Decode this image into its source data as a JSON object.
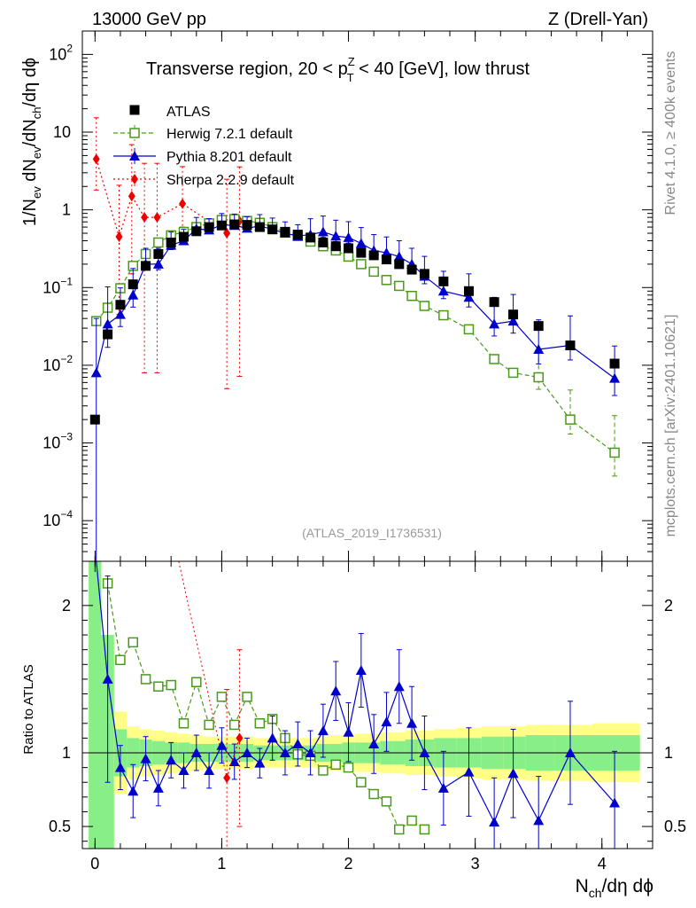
{
  "header": {
    "left": "13000 GeV pp",
    "right": "Z (Drell-Yan)"
  },
  "side_labels": {
    "top": "Rivet 4.1.0, ≥ 400k events",
    "bottom": "mcplots.cern.ch [arXiv:2401.10621]"
  },
  "chart_data": {
    "type": "line",
    "title": "Transverse region, 20 < pTZ < 40 [GeV], low thrust",
    "title_parts": {
      "pre": "Transverse region, 20 < p",
      "sup": "Z",
      "sub": "T",
      "post": " < 40 [GeV], low thrust"
    },
    "watermark": "(ATLAS_2019_I1736531)",
    "xlabel": "Nch/dη dϕ",
    "xlabel_parts": {
      "base": "N",
      "sub": "ch",
      "rest": "/dη dϕ"
    },
    "ylabel": "1/Nev dNev/dNch/dη dϕ",
    "ylabel_parts": {
      "a": "1/N",
      "a_sub": "ev",
      "b": " dN",
      "b_sub": "ev",
      "c": "/dN",
      "c_sub": "ch",
      "d": "/dη dϕ"
    },
    "ratio_ylabel": "Ratio to ATLAS",
    "xlim": [
      -0.1,
      4.4
    ],
    "ylim": [
      3e-05,
      200
    ],
    "yscale": "log",
    "ratio_ylim": [
      0.35,
      2.3
    ],
    "x_ticks": [
      0,
      1,
      2,
      3,
      4
    ],
    "x_tick_labels": [
      "0",
      "1",
      "2",
      "3",
      "4"
    ],
    "y_ticks": [
      {
        "v": 0.0001,
        "base": "10",
        "exp": "−4"
      },
      {
        "v": 0.001,
        "base": "10",
        "exp": "−3"
      },
      {
        "v": 0.01,
        "base": "10",
        "exp": "−2"
      },
      {
        "v": 0.1,
        "base": "10",
        "exp": "−1"
      },
      {
        "v": 1,
        "base": "1",
        "exp": ""
      },
      {
        "v": 10,
        "base": "10",
        "exp": ""
      },
      {
        "v": 100,
        "base": "10",
        "exp": "2"
      }
    ],
    "ratio_ticks": [
      {
        "v": 0.5,
        "label": "0.5"
      },
      {
        "v": 1,
        "label": "1"
      },
      {
        "v": 2,
        "label": "2"
      }
    ],
    "legend": [
      {
        "label": "ATLAS",
        "color": "#000000",
        "marker": "square"
      },
      {
        "label": "Herwig 7.2.1 default",
        "color": "#4a9a1a",
        "marker": "open-square",
        "dash": "dashed"
      },
      {
        "label": "Pythia 8.201 default",
        "color": "#0000cc",
        "marker": "triangle"
      },
      {
        "label": "Sherpa 2.2.9 default",
        "color": "#ee0000",
        "marker": "diamond",
        "dash": "dotted"
      }
    ],
    "series": [
      {
        "name": "ATLAS",
        "x": [
          0,
          0.1,
          0.2,
          0.3,
          0.4,
          0.5,
          0.6,
          0.7,
          0.8,
          0.9,
          1.0,
          1.1,
          1.2,
          1.3,
          1.4,
          1.5,
          1.6,
          1.7,
          1.8,
          1.9,
          2.0,
          2.1,
          2.2,
          2.3,
          2.4,
          2.5,
          2.6,
          2.75,
          2.95,
          3.15,
          3.3,
          3.5,
          3.75,
          4.1
        ],
        "values": [
          0.002,
          0.025,
          0.06,
          0.11,
          0.19,
          0.27,
          0.38,
          0.45,
          0.53,
          0.6,
          0.63,
          0.65,
          0.64,
          0.6,
          0.56,
          0.52,
          0.48,
          0.44,
          0.38,
          0.34,
          0.32,
          0.28,
          0.26,
          0.23,
          0.2,
          0.17,
          0.15,
          0.12,
          0.09,
          0.065,
          0.045,
          0.032,
          0.018,
          0.0105
        ]
      },
      {
        "name": "Herwig 7.2.1 default",
        "x": [
          0.01,
          0.1,
          0.2,
          0.3,
          0.4,
          0.5,
          0.6,
          0.7,
          0.8,
          0.9,
          1.0,
          1.1,
          1.2,
          1.3,
          1.4,
          1.5,
          1.6,
          1.7,
          1.8,
          1.9,
          2.0,
          2.1,
          2.2,
          2.3,
          2.4,
          2.5,
          2.6,
          2.75,
          2.95,
          3.15,
          3.3,
          3.5,
          3.75,
          4.1
        ],
        "values": [
          0.037,
          0.055,
          0.098,
          0.19,
          0.27,
          0.38,
          0.47,
          0.52,
          0.6,
          0.67,
          0.74,
          0.76,
          0.72,
          0.68,
          0.6,
          0.52,
          0.46,
          0.39,
          0.34,
          0.3,
          0.25,
          0.2,
          0.16,
          0.125,
          0.105,
          0.078,
          0.058,
          0.044,
          0.029,
          0.012,
          0.008,
          0.007,
          0.002,
          0.00075
        ],
        "errors": [
          0,
          0,
          0,
          0,
          0,
          0,
          0,
          0,
          0,
          0,
          0,
          0,
          0,
          0,
          0,
          0,
          0,
          0,
          0,
          0,
          0,
          0,
          0,
          0,
          0,
          0,
          0,
          0,
          0,
          0,
          0,
          0.3,
          0.35,
          0.5
        ]
      },
      {
        "name": "Pythia 8.201 default",
        "x": [
          0.01,
          0.1,
          0.2,
          0.3,
          0.4,
          0.5,
          0.6,
          0.7,
          0.8,
          0.9,
          1.0,
          1.1,
          1.2,
          1.3,
          1.4,
          1.5,
          1.6,
          1.7,
          1.8,
          1.9,
          2.0,
          2.1,
          2.2,
          2.3,
          2.4,
          2.5,
          2.6,
          2.75,
          2.95,
          3.15,
          3.3,
          3.5,
          3.75,
          4.1
        ],
        "values": [
          0.008,
          0.034,
          0.045,
          0.08,
          0.2,
          0.2,
          0.35,
          0.4,
          0.57,
          0.55,
          0.64,
          0.63,
          0.58,
          0.62,
          0.56,
          0.5,
          0.46,
          0.48,
          0.52,
          0.46,
          0.44,
          0.37,
          0.3,
          0.28,
          0.25,
          0.2,
          0.14,
          0.09,
          0.075,
          0.034,
          0.037,
          0.016,
          0.018,
          0.0068
        ],
        "errors": [
          1.0,
          0.5,
          0.3,
          0.3,
          0.15,
          0.15,
          0.12,
          0.1,
          0.1,
          0.1,
          0.1,
          0.1,
          0.1,
          0.1,
          0.1,
          0.1,
          0.1,
          0.15,
          0.15,
          0.15,
          0.15,
          0.15,
          0.15,
          0.15,
          0.15,
          0.15,
          0.2,
          0.2,
          0.25,
          0.3,
          0.3,
          0.35,
          0.35,
          0.4
        ]
      },
      {
        "name": "Sherpa 2.2.9 default",
        "x": [
          0.01,
          0.19,
          0.29,
          0.39,
          0.49,
          0.69,
          1.04,
          1.14
        ],
        "values": [
          4.5,
          0.45,
          1.5,
          0.8,
          0.8,
          1.2,
          0.5,
          0.72
        ],
        "errors": [
          0.6,
          0.9,
          0.9,
          0.99,
          0.99,
          0.5,
          0.99,
          0.99
        ]
      }
    ],
    "ratio_series": [
      {
        "name": "Herwig 7.2.1 default",
        "x": [
          0.1,
          0.2,
          0.3,
          0.4,
          0.5,
          0.6,
          0.7,
          0.8,
          0.9,
          1.0,
          1.1,
          1.2,
          1.3,
          1.4,
          1.5,
          1.6,
          1.7,
          1.8,
          1.9,
          2.0,
          2.1,
          2.2,
          2.3,
          2.4,
          2.5,
          2.6
        ],
        "values": [
          2.15,
          1.63,
          1.75,
          1.5,
          1.45,
          1.46,
          1.2,
          1.48,
          1.19,
          1.38,
          1.19,
          1.38,
          1.2,
          1.23,
          1.1,
          0.99,
          0.98,
          0.88,
          0.92,
          0.9,
          0.8,
          0.72,
          0.67,
          0.48,
          0.54,
          0.48
        ]
      },
      {
        "name": "Pythia 8.201 default",
        "x": [
          0.1,
          0.2,
          0.3,
          0.4,
          0.5,
          0.6,
          0.7,
          0.8,
          0.9,
          1.0,
          1.1,
          1.2,
          1.3,
          1.4,
          1.5,
          1.6,
          1.7,
          1.8,
          1.9,
          2.0,
          2.1,
          2.2,
          2.3,
          2.4,
          2.5,
          2.6,
          2.75,
          2.95,
          3.15,
          3.3,
          3.5,
          3.75,
          4.1
        ],
        "values": [
          1.5,
          0.9,
          0.74,
          0.96,
          0.76,
          0.95,
          0.88,
          1.0,
          0.88,
          1.05,
          0.94,
          1.0,
          0.93,
          1.1,
          1.0,
          1.06,
          1.0,
          1.15,
          1.42,
          1.14,
          1.56,
          1.06,
          1.21,
          1.45,
          1.2,
          1.0,
          0.76,
          0.87,
          0.53,
          0.86,
          0.54,
          1.0,
          0.66
        ],
        "errors": [
          0.7,
          0.15,
          0.18,
          0.15,
          0.12,
          0.12,
          0.12,
          0.12,
          0.12,
          0.12,
          0.12,
          0.1,
          0.1,
          0.15,
          0.15,
          0.15,
          0.15,
          0.18,
          0.2,
          0.2,
          0.25,
          0.2,
          0.2,
          0.25,
          0.25,
          0.25,
          0.25,
          0.3,
          0.3,
          0.3,
          0.3,
          0.35,
          0.35
        ]
      },
      {
        "name": "Sherpa 2.2.9 default",
        "x": [
          1.04,
          1.14
        ],
        "values": [
          0.83,
          1.1
        ],
        "errors": [
          0.6,
          0.6
        ]
      }
    ]
  }
}
